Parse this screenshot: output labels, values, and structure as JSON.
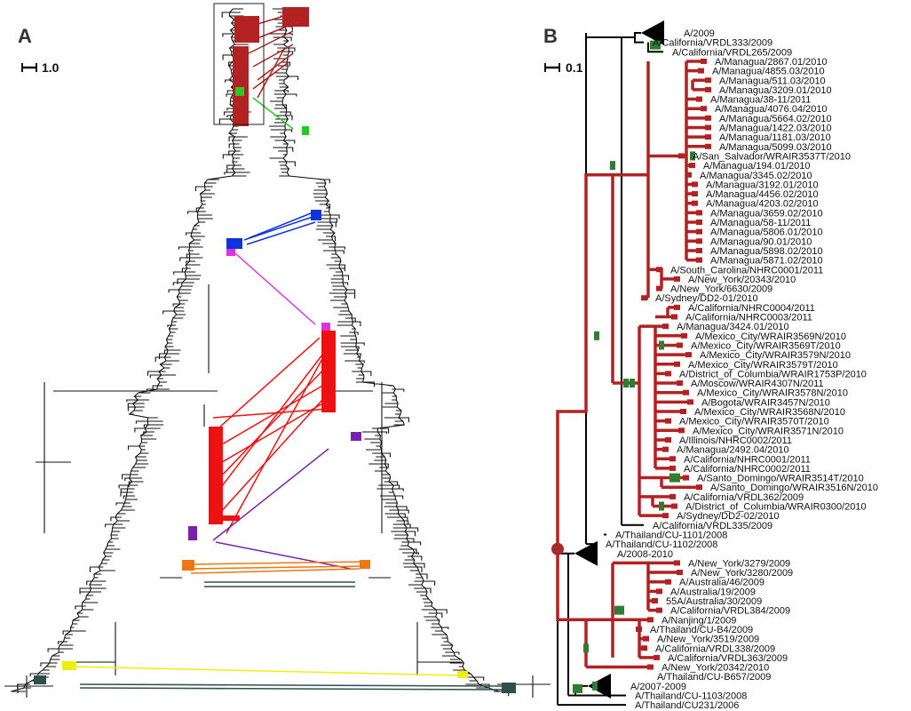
{
  "panels": {
    "a": {
      "letter": "A",
      "scale_label": "1.0"
    },
    "b": {
      "letter": "B",
      "scale_label": "0.1"
    }
  },
  "colors": {
    "branch": "#000000",
    "lineage": "#b22222",
    "mutation": "#2e7d32",
    "node": "#a52a2a",
    "a_red": "#ee1111",
    "a_darkred": "#b22222",
    "a_green": "#22cc22",
    "a_blue": "#1133dd",
    "a_magenta": "#dd33dd",
    "a_purple": "#7722aa",
    "a_orange": "#ee7711",
    "a_yellow": "#eeee11",
    "a_darkslate": "#2f4f4f"
  },
  "panel_b_taxa": [
    "A/2009",
    "A/California/VRDL333/2009",
    "A/California/VRDL265/2009",
    "A/Managua/2867.01/2010",
    "A/Managua/4855.03/2010",
    "A/Managua/511.03/2010",
    "A/Managua/3209.01/2010",
    "A/Managua/38-11/2011",
    "A/Managua/4076.04/2010",
    "A/Managua/5664.02/2010",
    "A/Managua/1422.03/2010",
    "A/Managua/1181.03/2010",
    "A/Managua/5099.03/2010",
    "A/San_Salvador/WRAIR3537T/2010",
    "A/Managua/194.01/2010",
    "A/Managua/3345.02/2010",
    "A/Managua/3192.01/2010",
    "A/Managua/4456.02/2010",
    "A/Managua/4203.02/2010",
    "A/Managua/3659.02/2010",
    "A/Managua/58-11/2011",
    "A/Managua/5806.01/2010",
    "A/Managua/90.01/2010",
    "A/Managua/5898.02/2010",
    "A/Managua/5871.02/2010",
    "A/South_Carolina/NHRC0001/2011",
    "A/New_York/20343/2010",
    "A/New_York/6630/2009",
    "A/Sydney/DD2-01/2010",
    "A/California/NHRC0004/2011",
    "A/California/NHRC0003/2011",
    "A/Managua/3424.01/2010",
    "A/Mexico_City/WRAIR3569N/2010",
    "A/Mexico_City/WRAIR3569T/2010",
    "A/Mexico_City/WRAIR3579N/2010",
    "A/Mexico_City/WRAIR3579T/2010",
    "A/District_of_Columbia/WRAIR1753P/2010",
    "A/Moscow/WRAIR4307N/2011",
    "A/Mexico_City/WRAIR3578N/2010",
    "A/Bogota/WRAIR3457N/2010",
    "A/Mexico_City/WRAIR3568N/2010",
    "A/Mexico_City/WRAIR3570T/2010",
    "A/Mexico_City/WRAIR3571N/2010",
    "A/Illinois/NHRC0002/2011",
    "A/Managua/2492.04/2010",
    "A/California/NHRC0001/2011",
    "A/California/NHRC0002/2011",
    "A/Santo_Domingo/WRAIR3514T/2010",
    "A/Santo_Domingo/WRAIR3516N/2010",
    "A/California/VRDL362/2009",
    "A/District_of_Columbia/WRAIR0300/2010",
    "A/Sydney/DD2-02/2010",
    "A/California/VRDL335/2009",
    "A/Thailand/CU-1101/2008",
    "A/Thailand/CU-1102/2008",
    "A/2008-2010",
    "A/New_York/3279/2009",
    "A/New_York/3280/2009",
    "A/Australia/46/2009",
    "A/Australia/19/2009",
    "55A/Australia/30/2009",
    "A/California/VRDL384/2009",
    "A/Nanjing/1/2009",
    "A/Thailand/CU-B4/2009",
    "A/New_York/3519/2009",
    "A/California/VRDL338/2009",
    "A/California/VRDL363/2009",
    "A/New_York/20342/2010",
    "A/Thailand/CU-B657/2009",
    "A/2007-2009",
    "A/Thailand/CU-1103/2008",
    "A/Thailand/CU231/2006"
  ]
}
